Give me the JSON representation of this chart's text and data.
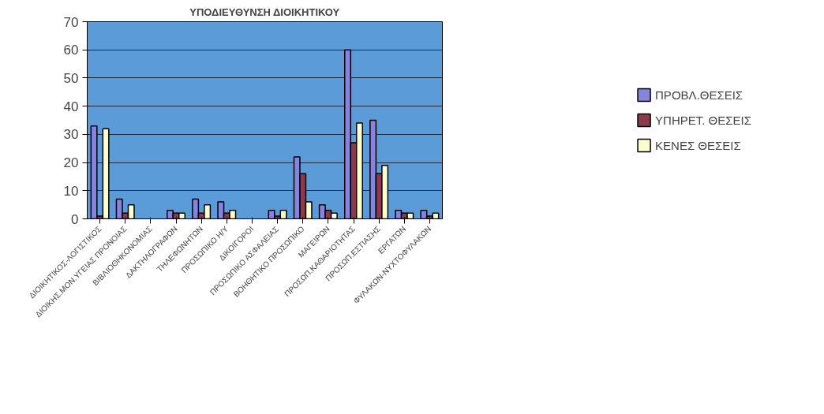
{
  "chart_data": {
    "type": "bar",
    "title": "ΥΠΟΔΙΕΥΘΥΝΣΗ ΔΙΟΙΚΗΤΙΚΟΥ",
    "categories": [
      "ΔΙΟΙΚΗΤΙΚΟΣ-ΛΟΓΙΣΤΙΚΟΣ",
      "ΔΙΟΙΚΗΣ.ΜΟΝ.ΥΓΕΙΑΣ ΠΡΟΝΟΙΑΣ",
      "ΒΙΒΛΙΟΘΗΚΟΝΟΜΙΑΣ",
      "ΔΑΚΤΗΛΟΓΡΑΦΩΝ",
      "ΤΗΛΕΦΩΝΗΤΩΝ",
      "ΠΡΟΣΩΠΙΚΟ Η/Υ",
      "ΔΙΚΟΙΓΟΡΟΙ",
      "ΠΡΟΣΩΠΙΚΟ ΑΣΦΑΛΕΙΑΣ",
      "ΒΟΗΘΗΤΙΚΟ ΠΡΟΣΩΠΙΚΟ",
      "ΜΑΓΕΙΡΩΝ",
      "ΠΡΟΣΩΠ.ΚΑΘΑΡΙΟΤΗΤΑΣ",
      "ΠΡΟΣΩΠ.ΕΣΤΙΑΣΗΣ",
      "ΕΡΓΑΤΩΝ",
      "ΦΥΛΑΚΩΝ-ΝΥΧΤΟΦΥΛΑΚΩΝ"
    ],
    "series": [
      {
        "name": "ΠΡΟΒΛ.ΘΕΣΕΙΣ",
        "color": "#8585e0",
        "values": [
          33,
          7,
          0,
          3,
          7,
          6,
          0,
          3,
          22,
          5,
          60,
          35,
          3,
          3
        ]
      },
      {
        "name": "ΥΠΗΡΕΤ. ΘΕΣΕΙΣ",
        "color": "#8b3a4e",
        "values": [
          1,
          2,
          0,
          2,
          2,
          2,
          0,
          1,
          16,
          3,
          27,
          16,
          2,
          1
        ]
      },
      {
        "name": "ΚΕΝΕΣ ΘΕΣΕΙΣ",
        "color": "#ffffd0",
        "values": [
          32,
          5,
          0,
          2,
          5,
          3,
          0,
          3,
          6,
          2,
          34,
          19,
          2,
          2
        ]
      }
    ],
    "ylim": [
      0,
      70
    ],
    "yticks": [
      0,
      10,
      20,
      30,
      40,
      50,
      60,
      70
    ],
    "grid": "y",
    "legend": "right"
  }
}
